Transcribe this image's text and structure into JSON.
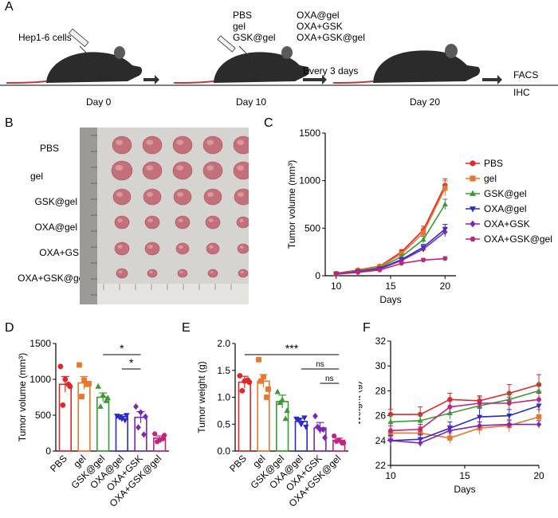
{
  "panels": {
    "A": "A",
    "B": "B",
    "C": "C",
    "D": "D",
    "E": "E",
    "F": "F"
  },
  "panelA": {
    "cells": "Hep1-6 cells",
    "day0": "Day 0",
    "day10": "Day 10",
    "groups_col1": [
      "PBS",
      "gel",
      "GSK@gel"
    ],
    "groups_col2": [
      "OXA@gel",
      "OXA+GSK",
      "OXA+GSK@gel"
    ],
    "every": "Every 3 days",
    "day20": "Day 20",
    "analysis": [
      "FACS",
      "IHC"
    ]
  },
  "panelB": {
    "rows": [
      "PBS",
      "gel",
      "GSK@gel",
      "OXA@gel",
      "OXA+GSK",
      "OXA+GSK@gel"
    ]
  },
  "colors": {
    "PBS": "#e0262a",
    "gel": "#e8772e",
    "GSK@gel": "#3a9a36",
    "OXA@gel": "#2a2ac8",
    "OXA+GSK": "#7a28b4",
    "OXA+GSK@gel": "#c2247c"
  },
  "chart_data": [
    {
      "panel": "C",
      "type": "line",
      "title": "",
      "xlabel": "Days",
      "ylabel": "Tumor volume (mm³)",
      "x": [
        10,
        12,
        14,
        16,
        18,
        20
      ],
      "xlim": [
        9,
        21
      ],
      "ylim": [
        0,
        1500
      ],
      "xticks": [
        10,
        15,
        20
      ],
      "yticks": [
        0,
        500,
        1000,
        1500
      ],
      "legend_position": "right",
      "series": [
        {
          "name": "PBS",
          "marker": "circle",
          "values": [
            25,
            60,
            100,
            250,
            480,
            950
          ],
          "err": [
            5,
            8,
            12,
            25,
            40,
            70
          ]
        },
        {
          "name": "gel",
          "marker": "square",
          "values": [
            22,
            55,
            95,
            230,
            450,
            920
          ],
          "err": [
            5,
            8,
            12,
            25,
            40,
            80
          ]
        },
        {
          "name": "GSK@gel",
          "marker": "triangle",
          "values": [
            20,
            50,
            85,
            200,
            380,
            750
          ],
          "err": [
            5,
            7,
            10,
            22,
            35,
            55
          ]
        },
        {
          "name": "OXA@gel",
          "marker": "triangle-down",
          "values": [
            18,
            45,
            75,
            170,
            300,
            490
          ],
          "err": [
            4,
            6,
            10,
            20,
            30,
            50
          ]
        },
        {
          "name": "OXA+GSK",
          "marker": "diamond",
          "values": [
            16,
            42,
            70,
            160,
            280,
            460
          ],
          "err": [
            4,
            6,
            10,
            20,
            30,
            50
          ]
        },
        {
          "name": "OXA+GSK@gel",
          "marker": "hexagon",
          "values": [
            15,
            35,
            60,
            130,
            165,
            180
          ],
          "err": [
            3,
            5,
            8,
            14,
            18,
            20
          ]
        }
      ]
    },
    {
      "panel": "D",
      "type": "bar",
      "ylabel": "Tumor volume (mm³)",
      "ylim": [
        0,
        1500
      ],
      "yticks": [
        0,
        500,
        1000,
        1500
      ],
      "categories": [
        "PBS",
        "gel",
        "GSK@gel",
        "OXA@gel",
        "OXA+GSK",
        "OXA+GSK@gel"
      ],
      "values": [
        930,
        950,
        750,
        480,
        470,
        180
      ],
      "err": [
        110,
        90,
        60,
        25,
        80,
        30
      ],
      "points": [
        [
          1180,
          1000,
          900,
          640,
          930
        ],
        [
          1200,
          990,
          940,
          760,
          930
        ],
        [
          900,
          780,
          740,
          620,
          700
        ],
        [
          490,
          450,
          500,
          470,
          430
        ],
        [
          620,
          540,
          480,
          330,
          230
        ],
        [
          240,
          150,
          220,
          130,
          170
        ]
      ],
      "significance": [
        {
          "from": 3,
          "to": 5,
          "text": "*"
        },
        {
          "from": 4,
          "to": 5,
          "text": "*"
        }
      ]
    },
    {
      "panel": "E",
      "type": "bar",
      "ylabel": "Tumor weight (g)",
      "ylim": [
        0,
        2.0
      ],
      "yticks": [
        "0.0",
        "0.5",
        "1.0",
        "1.5",
        "2.0"
      ],
      "categories": [
        "PBS",
        "gel",
        "GSK@gel",
        "OXA@gel",
        "OXA+GSK",
        "OXA+GSK@gel"
      ],
      "values": [
        1.28,
        1.3,
        0.92,
        0.55,
        0.43,
        0.2
      ],
      "err": [
        0.11,
        0.12,
        0.12,
        0.06,
        0.1,
        0.04
      ],
      "points": [
        [
          1.4,
          1.3,
          1.28,
          1.12,
          1.32
        ],
        [
          1.7,
          1.38,
          1.15,
          1.3,
          1.0
        ],
        [
          1.1,
          0.95,
          0.75,
          0.9,
          0.6
        ],
        [
          0.6,
          0.5,
          0.45,
          0.58,
          0.62
        ],
        [
          0.65,
          0.4,
          0.25,
          0.45,
          0.4
        ],
        [
          0.28,
          0.2,
          0.15,
          0.18,
          0.15
        ]
      ],
      "significance": [
        {
          "from": 1,
          "to": 6,
          "text": "***"
        },
        {
          "from": 4,
          "to": 6,
          "text": "ns"
        },
        {
          "from": 5,
          "to": 6,
          "text": "ns"
        }
      ]
    },
    {
      "panel": "F",
      "type": "line",
      "xlabel": "Days",
      "ylabel": "Weight (g)",
      "x": [
        10,
        12,
        14,
        16,
        18,
        20
      ],
      "xlim": [
        10,
        20
      ],
      "ylim": [
        22,
        32
      ],
      "xticks": [
        10,
        15,
        20
      ],
      "yticks": [
        22,
        24,
        26,
        28,
        30,
        32
      ],
      "series": [
        {
          "name": "PBS",
          "marker": "circle",
          "values": [
            26.1,
            26.1,
            27.3,
            27.2,
            27.8,
            28.5
          ],
          "err": [
            0.4,
            0.6,
            0.5,
            0.4,
            0.7,
            0.8
          ]
        },
        {
          "name": "gel",
          "marker": "square",
          "values": [
            24.6,
            24.6,
            24.2,
            25.0,
            25.2,
            25.9
          ],
          "err": [
            0.6,
            0.5,
            0.4,
            0.5,
            0.5,
            0.6
          ]
        },
        {
          "name": "GSK@gel",
          "marker": "triangle",
          "values": [
            25.5,
            25.6,
            26.2,
            26.8,
            27.3,
            28.0
          ],
          "err": [
            0.5,
            0.5,
            0.5,
            0.5,
            0.5,
            0.6
          ]
        },
        {
          "name": "OXA@gel",
          "marker": "triangle-down",
          "values": [
            24.0,
            24.1,
            25.0,
            25.9,
            26.0,
            26.8
          ],
          "err": [
            0.4,
            0.4,
            0.5,
            0.7,
            0.5,
            0.5
          ]
        },
        {
          "name": "OXA+GSK",
          "marker": "diamond",
          "values": [
            24.0,
            23.8,
            24.8,
            25.2,
            25.3,
            25.3
          ],
          "err": [
            0.3,
            0.3,
            0.4,
            0.3,
            0.3,
            0.3
          ]
        },
        {
          "name": "OXA+GSK@gel",
          "marker": "hexagon",
          "values": [
            24.8,
            24.9,
            26.7,
            27.0,
            27.0,
            27.3
          ],
          "err": [
            0.4,
            0.4,
            0.5,
            0.5,
            0.5,
            0.5
          ]
        }
      ]
    }
  ]
}
